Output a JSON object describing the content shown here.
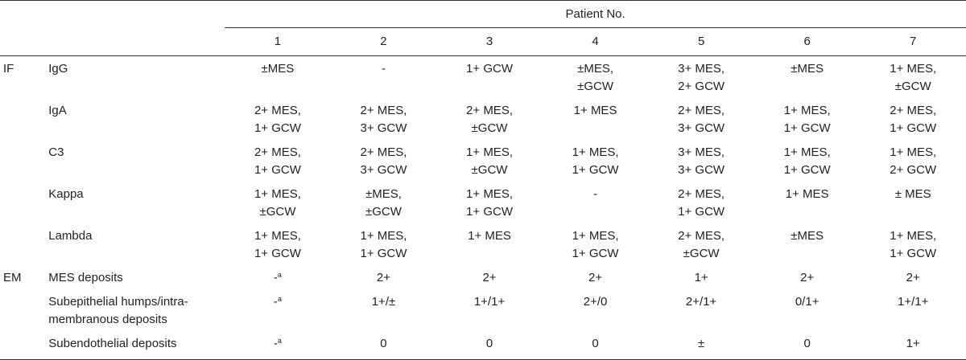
{
  "header": {
    "group_label": "Patient No.",
    "patients": [
      "1",
      "2",
      "3",
      "4",
      "5",
      "6",
      "7"
    ]
  },
  "rows": [
    {
      "section": "IF",
      "label": [
        "IgG"
      ],
      "cells": [
        [
          "±MES"
        ],
        [
          "-"
        ],
        [
          "1+ GCW"
        ],
        [
          "±MES,",
          "±GCW"
        ],
        [
          "3+ MES,",
          "2+ GCW"
        ],
        [
          "±MES"
        ],
        [
          "1+ MES,",
          "±GCW"
        ]
      ]
    },
    {
      "section": "",
      "label": [
        "IgA"
      ],
      "cells": [
        [
          "2+ MES,",
          "1+ GCW"
        ],
        [
          "2+ MES,",
          "3+ GCW"
        ],
        [
          "2+ MES,",
          "±GCW"
        ],
        [
          "1+ MES"
        ],
        [
          "2+ MES,",
          "3+ GCW"
        ],
        [
          "1+ MES,",
          "1+ GCW"
        ],
        [
          "2+ MES,",
          "1+ GCW"
        ]
      ]
    },
    {
      "section": "",
      "label": [
        "C3"
      ],
      "cells": [
        [
          "2+ MES,",
          "1+ GCW"
        ],
        [
          "2+ MES,",
          "3+ GCW"
        ],
        [
          "1+ MES,",
          "±GCW"
        ],
        [
          "1+ MES,",
          "1+ GCW"
        ],
        [
          "3+ MES,",
          "3+ GCW"
        ],
        [
          "1+ MES,",
          "1+ GCW"
        ],
        [
          "1+ MES,",
          "2+ GCW"
        ]
      ]
    },
    {
      "section": "",
      "label": [
        "Kappa"
      ],
      "cells": [
        [
          "1+ MES,",
          "±GCW"
        ],
        [
          "±MES,",
          "±GCW"
        ],
        [
          "1+ MES,",
          "1+ GCW"
        ],
        [
          "-"
        ],
        [
          "2+ MES,",
          "1+ GCW"
        ],
        [
          "1+ MES"
        ],
        [
          "± MES"
        ]
      ]
    },
    {
      "section": "",
      "label": [
        "Lambda"
      ],
      "cells": [
        [
          "1+ MES,",
          "1+ GCW"
        ],
        [
          "1+ MES,",
          "1+ GCW"
        ],
        [
          "1+ MES"
        ],
        [
          "1+ MES,",
          "1+ GCW"
        ],
        [
          "2+ MES,",
          "±GCW"
        ],
        [
          "±MES"
        ],
        [
          "1+ MES,",
          "1+ GCW"
        ]
      ]
    },
    {
      "section": "EM",
      "label": [
        "MES deposits"
      ],
      "cells": [
        [
          "-"
        ],
        [
          "2+"
        ],
        [
          "2+"
        ],
        [
          "2+"
        ],
        [
          "1+"
        ],
        [
          "2+"
        ],
        [
          "2+"
        ]
      ]
    },
    {
      "section": "",
      "label": [
        "Subepithelial humps/intra-",
        "membranous deposits"
      ],
      "cells": [
        [
          "-"
        ],
        [
          "1+/±"
        ],
        [
          "1+/1+"
        ],
        [
          "2+/0"
        ],
        [
          "2+/1+"
        ],
        [
          "0/1+"
        ],
        [
          "1+/1+"
        ]
      ]
    },
    {
      "section": "",
      "label": [
        "Subendothelial deposits"
      ],
      "cells": [
        [
          "-"
        ],
        [
          "0"
        ],
        [
          "0"
        ],
        [
          "0"
        ],
        [
          "±"
        ],
        [
          "0"
        ],
        [
          "1+"
        ]
      ]
    }
  ],
  "footnote_marker": "a"
}
